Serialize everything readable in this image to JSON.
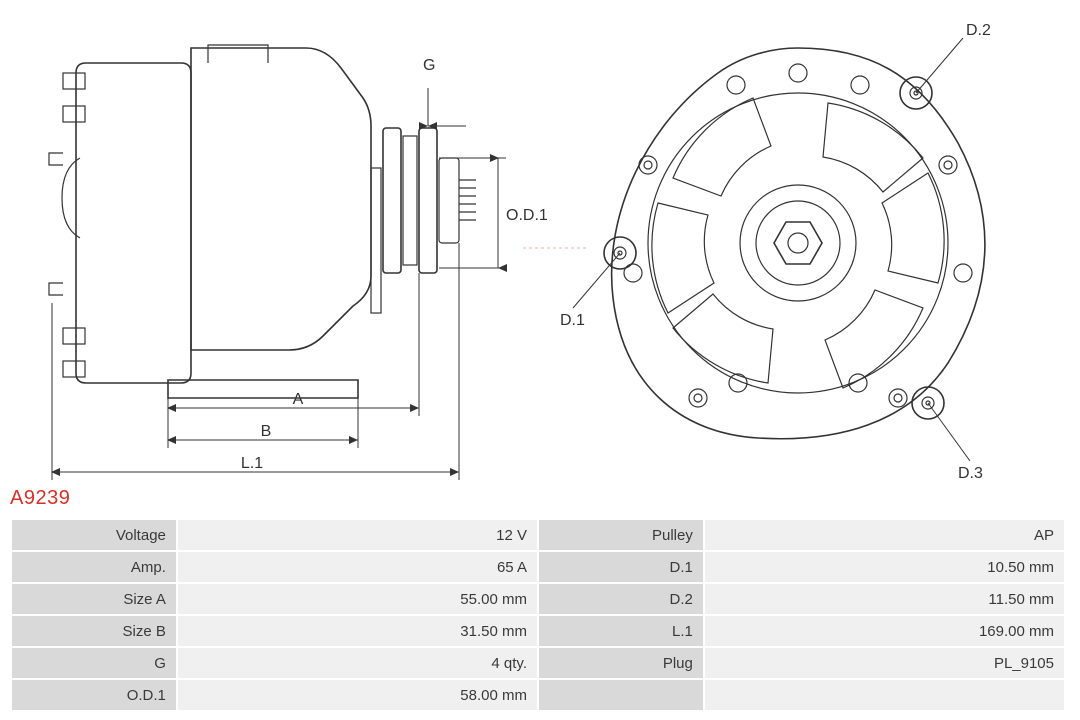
{
  "part_code": "A9239",
  "diagram": {
    "labels": {
      "G": "G",
      "OD1": "O.D.1",
      "A": "A",
      "B": "B",
      "L1": "L.1",
      "D1": "D.1",
      "D2": "D.2",
      "D3": "D.3"
    },
    "colors": {
      "stroke": "#333333",
      "centerline": "#e9b0b0",
      "background": "#ffffff"
    }
  },
  "spec_rows": [
    {
      "l1": "Voltage",
      "v1": "12 V",
      "l2": "Pulley",
      "v2": "AP"
    },
    {
      "l1": "Amp.",
      "v1": "65 A",
      "l2": "D.1",
      "v2": "10.50 mm"
    },
    {
      "l1": "Size A",
      "v1": "55.00 mm",
      "l2": "D.2",
      "v2": "11.50 mm"
    },
    {
      "l1": "Size B",
      "v1": "31.50 mm",
      "l2": "L.1",
      "v2": "169.00 mm"
    },
    {
      "l1": "G",
      "v1": "4 qty.",
      "l2": "Plug",
      "v2": "PL_9105"
    },
    {
      "l1": "O.D.1",
      "v1": "58.00 mm",
      "l2": "",
      "v2": ""
    }
  ]
}
